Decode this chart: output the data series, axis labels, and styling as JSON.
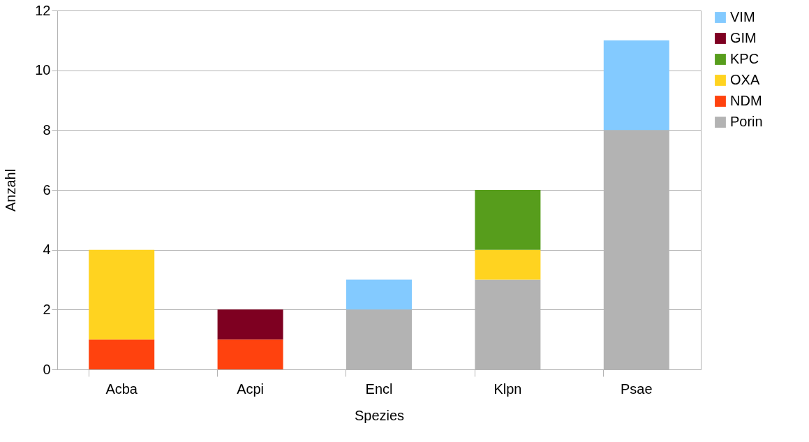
{
  "chart_data": {
    "type": "bar",
    "stacked": true,
    "xlabel": "Spezies",
    "ylabel": "Anzahl",
    "categories": [
      "Acba",
      "Acpi",
      "Encl",
      "Klpn",
      "Psae"
    ],
    "series": [
      {
        "name": "Porin",
        "color": "#b3b3b3",
        "values": [
          null,
          null,
          2,
          3,
          8
        ]
      },
      {
        "name": "NDM",
        "color": "#ff420e",
        "values": [
          1,
          1,
          null,
          null,
          null
        ]
      },
      {
        "name": "OXA",
        "color": "#ffd320",
        "values": [
          3,
          null,
          null,
          1,
          null
        ]
      },
      {
        "name": "KPC",
        "color": "#579d1c",
        "values": [
          null,
          null,
          null,
          2,
          null
        ]
      },
      {
        "name": "GIM",
        "color": "#7e0021",
        "values": [
          null,
          1,
          null,
          null,
          null
        ]
      },
      {
        "name": "VIM",
        "color": "#83caff",
        "values": [
          null,
          null,
          1,
          null,
          3
        ]
      }
    ],
    "ylim": [
      0,
      12
    ],
    "yticks": [
      0,
      2,
      4,
      6,
      8,
      10,
      12
    ],
    "grid": "y",
    "legend": "right"
  }
}
